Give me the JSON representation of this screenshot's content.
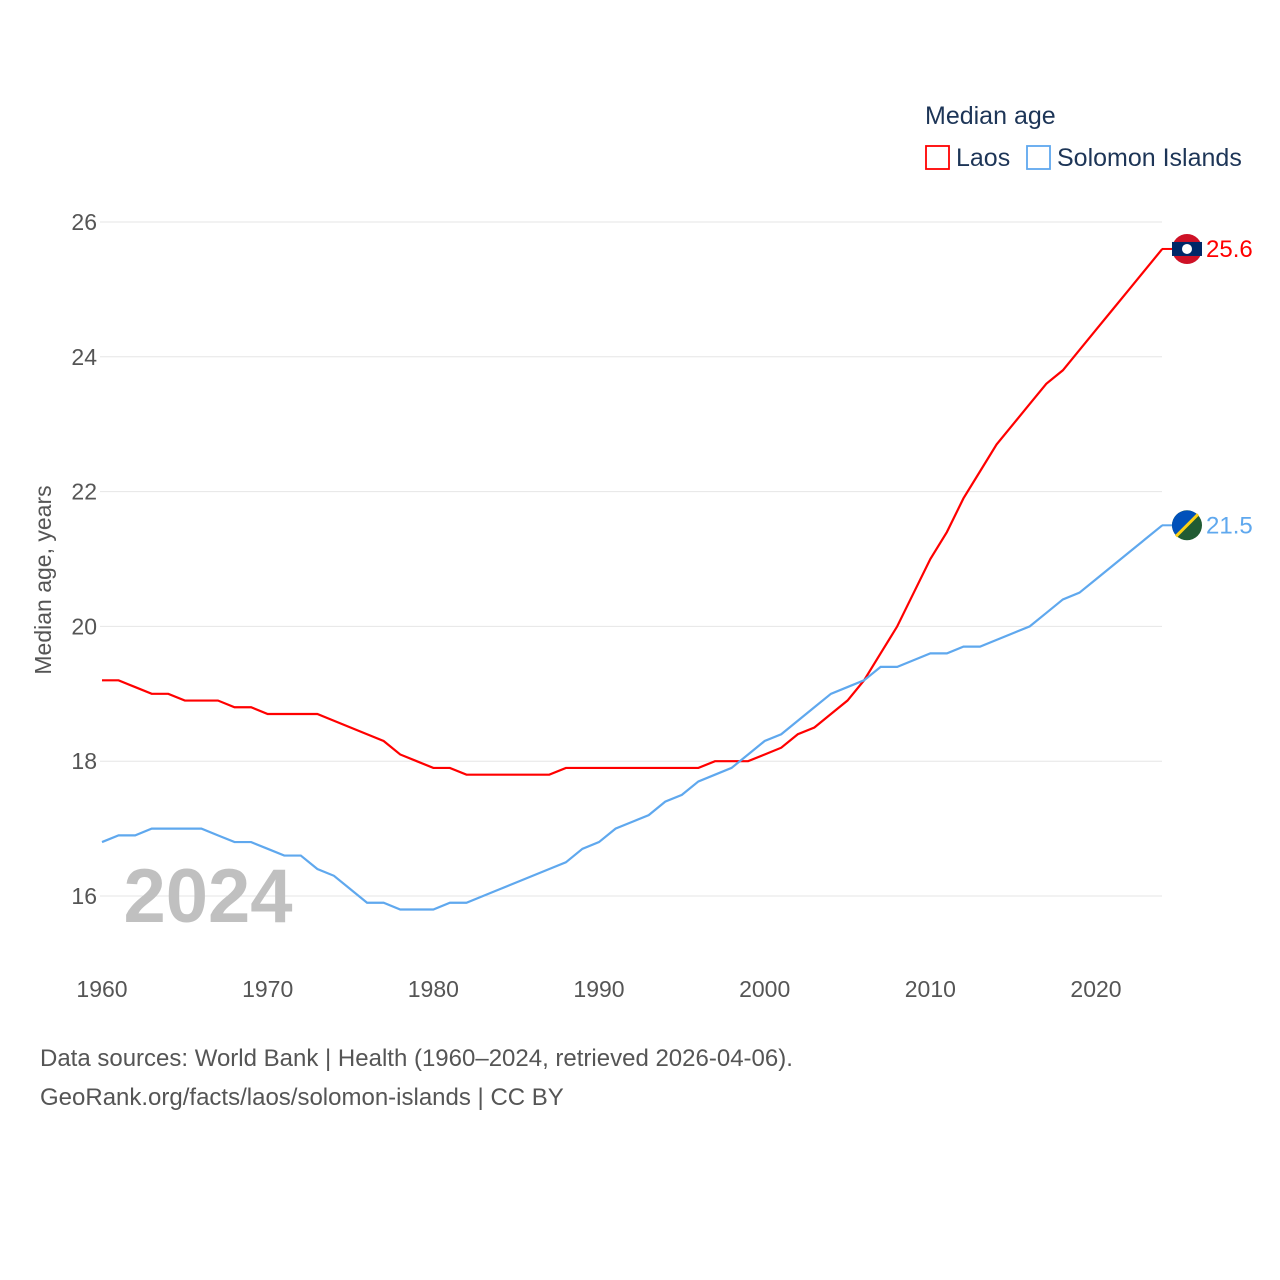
{
  "chart_data": {
    "type": "line",
    "title": "Median age",
    "xlabel": "",
    "ylabel": "Median age, years",
    "xlim": [
      1960,
      2024
    ],
    "ylim": [
      15,
      26.5
    ],
    "x_ticks": [
      "1960",
      "1970",
      "1980",
      "1990",
      "2000",
      "2010",
      "2020"
    ],
    "y_ticks": [
      "16",
      "18",
      "20",
      "22",
      "24",
      "26"
    ],
    "grid": true,
    "legend_position": "top-right",
    "year_label": "2024",
    "x": [
      1960,
      1961,
      1962,
      1963,
      1964,
      1965,
      1966,
      1967,
      1968,
      1969,
      1970,
      1971,
      1972,
      1973,
      1974,
      1975,
      1976,
      1977,
      1978,
      1979,
      1980,
      1981,
      1982,
      1983,
      1984,
      1985,
      1986,
      1987,
      1988,
      1989,
      1990,
      1991,
      1992,
      1993,
      1994,
      1995,
      1996,
      1997,
      1998,
      1999,
      2000,
      2001,
      2002,
      2003,
      2004,
      2005,
      2006,
      2007,
      2008,
      2009,
      2010,
      2011,
      2012,
      2013,
      2014,
      2015,
      2016,
      2017,
      2018,
      2019,
      2020,
      2021,
      2022,
      2023,
      2024
    ],
    "series": [
      {
        "name": "Laos",
        "color": "#ff0000",
        "end_label": "25.6",
        "values": [
          19.2,
          19.2,
          19.1,
          19.0,
          19.0,
          18.9,
          18.9,
          18.9,
          18.8,
          18.8,
          18.7,
          18.7,
          18.7,
          18.7,
          18.6,
          18.5,
          18.4,
          18.3,
          18.1,
          18.0,
          17.9,
          17.9,
          17.8,
          17.8,
          17.8,
          17.8,
          17.8,
          17.8,
          17.9,
          17.9,
          17.9,
          17.9,
          17.9,
          17.9,
          17.9,
          17.9,
          17.9,
          18.0,
          18.0,
          18.0,
          18.1,
          18.2,
          18.4,
          18.5,
          18.7,
          18.9,
          19.2,
          19.6,
          20.0,
          20.5,
          21.0,
          21.4,
          21.9,
          22.3,
          22.7,
          23.0,
          23.3,
          23.6,
          23.8,
          24.1,
          24.4,
          24.7,
          25.0,
          25.3,
          25.6
        ]
      },
      {
        "name": "Solomon Islands",
        "color": "#5fa8ee",
        "end_label": "21.5",
        "values": [
          16.8,
          16.9,
          16.9,
          17.0,
          17.0,
          17.0,
          17.0,
          16.9,
          16.8,
          16.8,
          16.7,
          16.6,
          16.6,
          16.4,
          16.3,
          16.1,
          15.9,
          15.9,
          15.8,
          15.8,
          15.8,
          15.9,
          15.9,
          16.0,
          16.1,
          16.2,
          16.3,
          16.4,
          16.5,
          16.7,
          16.8,
          17.0,
          17.1,
          17.2,
          17.4,
          17.5,
          17.7,
          17.8,
          17.9,
          18.1,
          18.3,
          18.4,
          18.6,
          18.8,
          19.0,
          19.1,
          19.2,
          19.4,
          19.4,
          19.5,
          19.6,
          19.6,
          19.7,
          19.7,
          19.8,
          19.9,
          20.0,
          20.2,
          20.4,
          20.5,
          20.7,
          20.9,
          21.1,
          21.3,
          21.5
        ]
      }
    ]
  },
  "footer": {
    "line1": "Data sources: World Bank | Health (1960–2024, retrieved 2026-04-06).",
    "line2": "GeoRank.org/facts/laos/solomon-islands | CC BY"
  }
}
